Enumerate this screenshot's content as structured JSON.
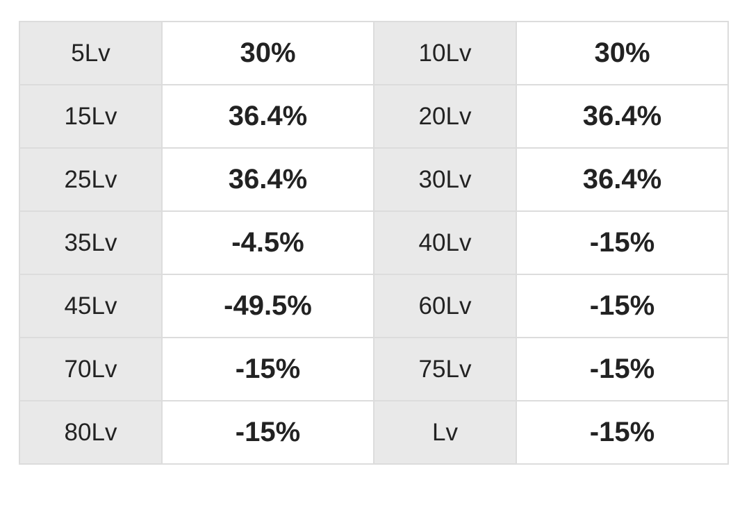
{
  "table": {
    "rows": [
      [
        "5Lv",
        "30%",
        "10Lv",
        "30%"
      ],
      [
        "15Lv",
        "36.4%",
        "20Lv",
        "36.4%"
      ],
      [
        "25Lv",
        "36.4%",
        "30Lv",
        "36.4%"
      ],
      [
        "35Lv",
        "-4.5%",
        "40Lv",
        "-15%"
      ],
      [
        "45Lv",
        "-49.5%",
        "60Lv",
        "-15%"
      ],
      [
        "70Lv",
        "-15%",
        "75Lv",
        "-15%"
      ],
      [
        "80Lv",
        "-15%",
        "Lv",
        "-15%"
      ]
    ]
  }
}
